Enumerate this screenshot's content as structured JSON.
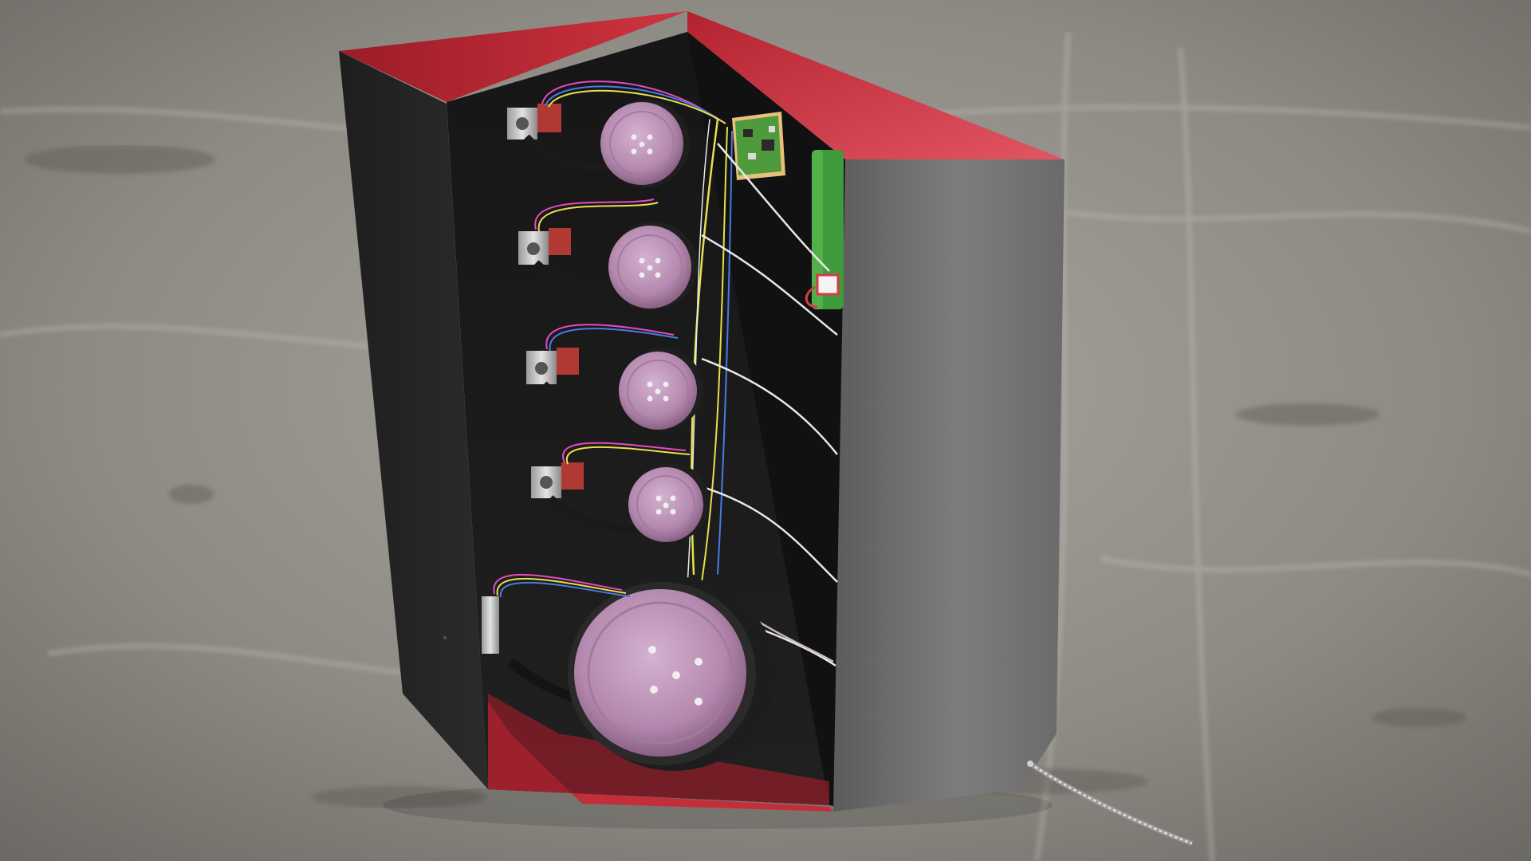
{
  "scene": {
    "subject": "enclosure-cutaway-render",
    "reel_count": 5,
    "colors": {
      "ground": "#8f8c86",
      "ground_dark": "#5f5c57",
      "ground_light": "#b9b6ae",
      "enclosure_side": "#7a7a7a",
      "enclosure_dark": "#262626",
      "enclosure_inner": "#1c1c1c",
      "accent_red": "#d83a47",
      "accent_red_dark": "#8b1a24",
      "reel_purple": "#b88bb3",
      "reel_rim": "#2a2a2a",
      "pcb_green": "#4e9a3c",
      "battery_green": "#3c9a3c",
      "motor_silver": "#b8b8b8",
      "wire_yellow": "#e6e04a",
      "wire_blue": "#4a7ae6",
      "wire_pink": "#e64ac0",
      "wire_white": "#e8e8e8",
      "cable_silver": "#c8c8c8"
    }
  }
}
